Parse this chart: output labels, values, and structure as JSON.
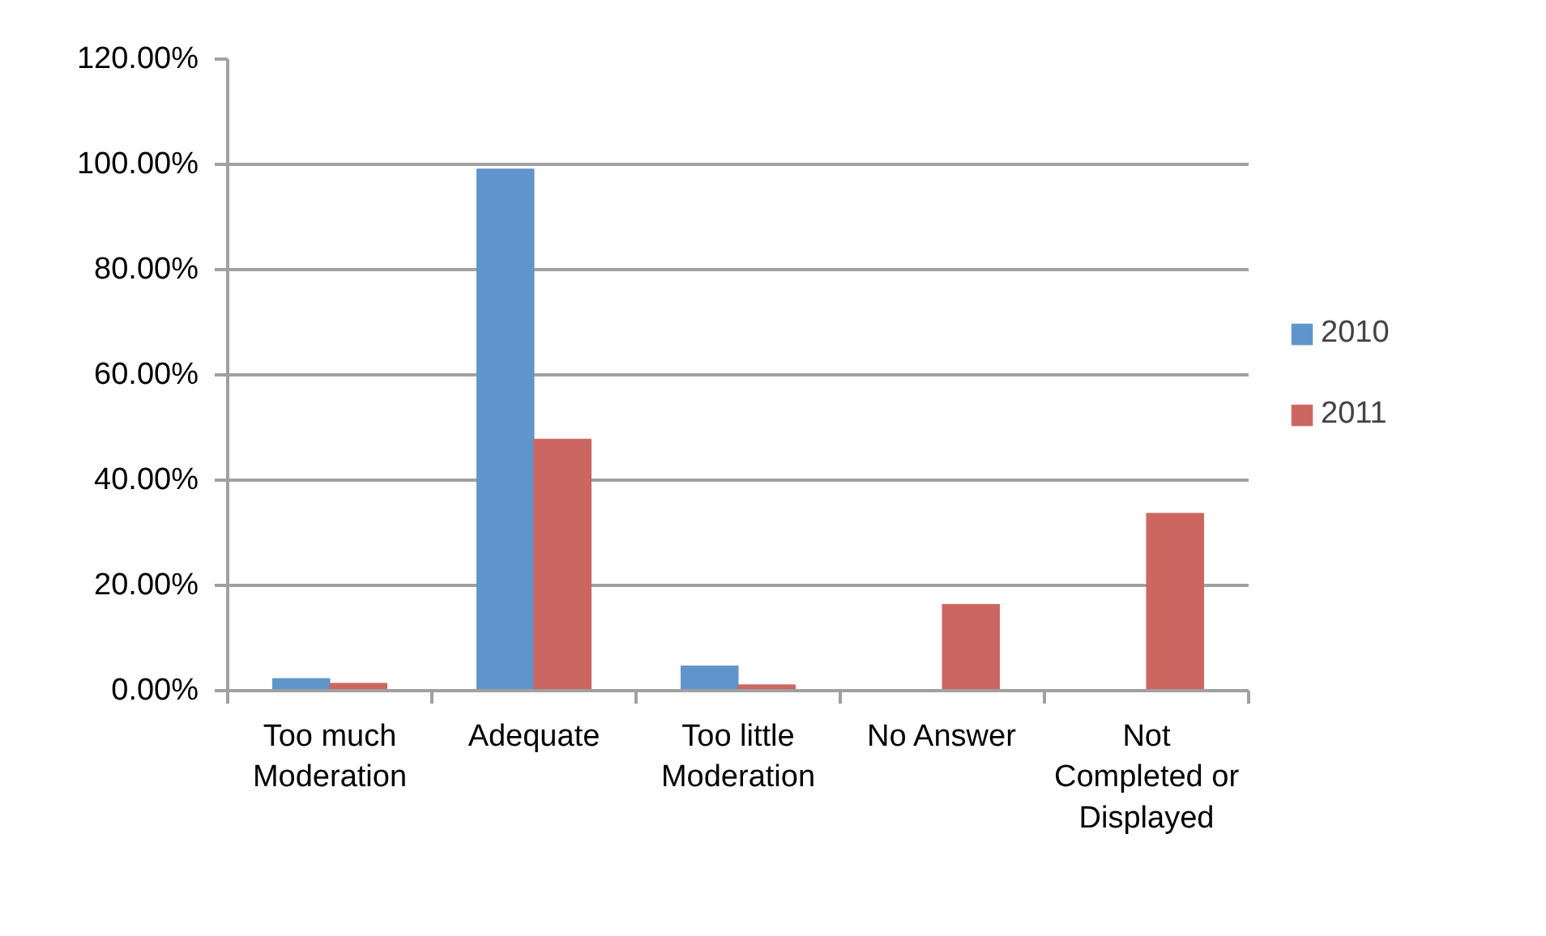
{
  "chart_data": {
    "type": "bar",
    "categories": [
      "Too much Moderation",
      "Adequate",
      "Too little Moderation",
      "No Answer",
      "Not Completed or Displayed"
    ],
    "series": [
      {
        "name": "2010",
        "color": "#5f95ca",
        "values": [
          2.3,
          99.1,
          4.7,
          null,
          null
        ]
      },
      {
        "name": "2011",
        "color": "#cc6661",
        "values": [
          1.4,
          47.8,
          1.1,
          16.4,
          33.7
        ]
      }
    ],
    "ylim": [
      0,
      120
    ],
    "yticks": [
      {
        "value": 0,
        "label": "0.00%"
      },
      {
        "value": 20,
        "label": "20.00%"
      },
      {
        "value": 40,
        "label": "40.00%"
      },
      {
        "value": 60,
        "label": "60.00%"
      },
      {
        "value": 80,
        "label": "80.00%"
      },
      {
        "value": 100,
        "label": "100.00%"
      },
      {
        "value": 120,
        "label": "120.00%"
      }
    ],
    "grid": "y",
    "legend": "right"
  }
}
